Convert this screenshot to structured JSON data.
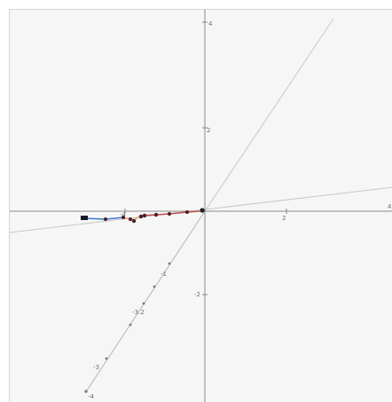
{
  "window": {
    "title": ""
  },
  "graph": {
    "ticks": {
      "y_top": "4",
      "y_upper": "2",
      "y_lower": "-2",
      "x_right": "2",
      "x_far_right": "4",
      "x_neg": "-4",
      "y_bottom_lbl": "-4"
    },
    "axis_color": "#8a8a8a",
    "grid_line_color": "#b9b9b9",
    "series_colors": {
      "blue_segment": "#3f76c9",
      "orange_segment": "#e0a46a",
      "red_segment": "#c14a4a",
      "points": "#4a1f2a"
    },
    "lower_labels": [
      "-1",
      "-3.2",
      "-3"
    ]
  }
}
